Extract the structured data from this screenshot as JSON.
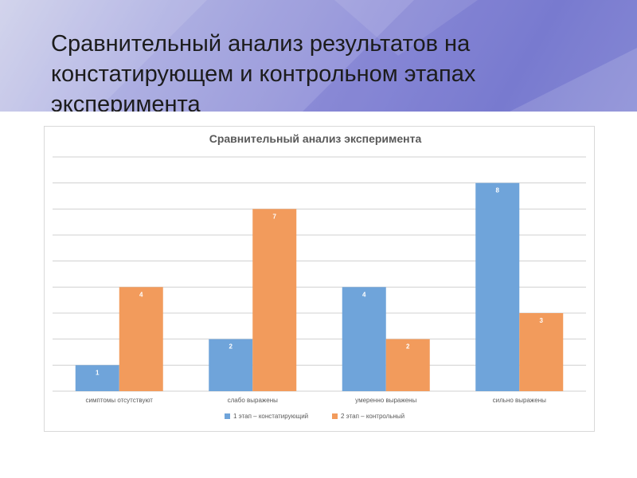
{
  "slide": {
    "title": "Сравнительный анализ результатов на констатирующем и контрольном этапах эксперимента"
  },
  "colors": {
    "series1": "#6fa4da",
    "series2": "#f29b5c",
    "grid": "#d0d0d0",
    "label": "#595959"
  },
  "chart_data": {
    "type": "bar",
    "title": "Сравнительный анализ эксперимента",
    "categories": [
      "симптомы отсутствуют",
      "слабо выражены",
      "умеренно выражены",
      "сильно выражены"
    ],
    "series": [
      {
        "name": "1 этап – констатирующий",
        "values": [
          1,
          2,
          4,
          8
        ]
      },
      {
        "name": "2 этап – контрольный",
        "values": [
          4,
          7,
          2,
          3
        ]
      }
    ],
    "xlabel": "",
    "ylabel": "",
    "ylim": [
      0,
      9
    ],
    "grid": true,
    "legend": "bottom",
    "data_labels": true
  }
}
